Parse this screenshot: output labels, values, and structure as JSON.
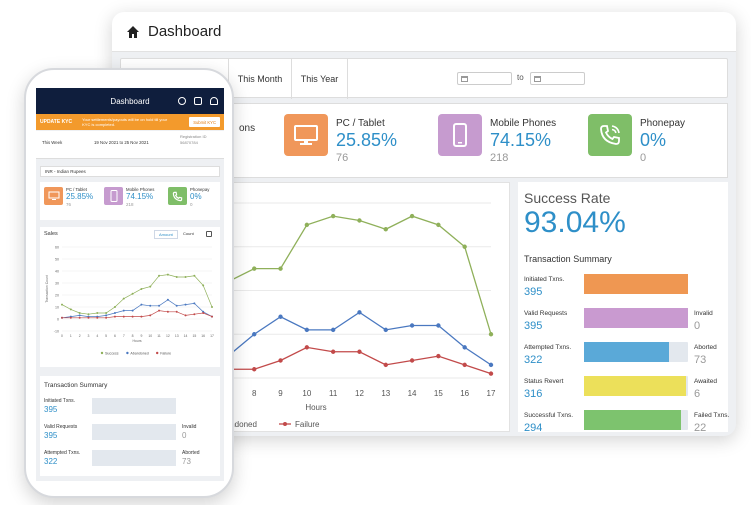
{
  "desktop": {
    "title": "Dashboard",
    "filter_tabs": [
      "This Month",
      "This Year"
    ],
    "date_to": "to",
    "partial_card_label": "ons",
    "cards": [
      {
        "label": "PC / Tablet",
        "pct": "25.85%",
        "sub": "76",
        "color": "#f0975a"
      },
      {
        "label": "Mobile Phones",
        "pct": "74.15%",
        "sub": "218",
        "color": "#c69bcf"
      },
      {
        "label": "Phonepay",
        "pct": "0%",
        "sub": "0",
        "color": "#7fbe68"
      }
    ],
    "success_rate_label": "Success Rate",
    "success_rate_value": "93.04%",
    "transaction_summary_title": "Transaction Summary",
    "summary_rows": [
      {
        "label": "Initiated Txns.",
        "value": "395",
        "color": "#ef9752",
        "fill": 1.0,
        "right_label": "",
        "right_value": ""
      },
      {
        "label": "Valid Requests",
        "value": "395",
        "color": "#c99ad0",
        "fill": 1.0,
        "right_label": "Invalid",
        "right_value": "0"
      },
      {
        "label": "Attempted Txns.",
        "value": "322",
        "color": "#5aa9d8",
        "fill": 0.815,
        "right_label": "Aborted",
        "right_value": "73"
      },
      {
        "label": "Status Revert",
        "value": "316",
        "color": "#ece05a",
        "fill": 0.98,
        "right_label": "Awaited",
        "right_value": "6"
      },
      {
        "label": "Successful Txns.",
        "value": "294",
        "color": "#7dc36e",
        "fill": 0.93,
        "right_label": "Failed Txns.",
        "right_value": "22"
      }
    ]
  },
  "phone": {
    "title": "Dashboard",
    "kyc_tag": "UPDATE KYC",
    "kyc_message": "Your settlements/payouts will be on hold till your KYC is completed.",
    "kyc_button": "Submit KYC",
    "period": "This Week",
    "date_range": "19 Nov 2021  to  25 Nov 2021",
    "registration_label": "Registration ID",
    "registration_value": "56870784",
    "currency": "INR  -  Indian Rupees",
    "cards": [
      {
        "label": "PC / Tablet",
        "pct": "25.85%",
        "sub": "76",
        "color": "#f0975a"
      },
      {
        "label": "Mobile Phones",
        "pct": "74.15%",
        "sub": "218",
        "color": "#c69bcf"
      },
      {
        "label": "Phonepay",
        "pct": "0%",
        "sub": "0",
        "color": "#7fbe68"
      }
    ],
    "sales_title": "Sales",
    "sales_tab_amount": "Amount",
    "sales_tab_count": "Count",
    "transaction_summary_title": "Transaction Summary",
    "summary_rows": [
      {
        "label": "Initiated Txns.",
        "value": "395",
        "color": "#ef9752",
        "fill": 1.0,
        "right_label": "",
        "right_value": ""
      },
      {
        "label": "Valid Requests",
        "value": "395",
        "color": "#c99ad0",
        "fill": 1.0,
        "right_label": "Invalid",
        "right_value": "0"
      },
      {
        "label": "Attempted Txns.",
        "value": "322",
        "color": "#5aa9d8",
        "fill": 0.815,
        "right_label": "Aborted",
        "right_value": "73"
      }
    ]
  },
  "chart_data": [
    {
      "type": "line",
      "x": [
        4,
        5,
        6,
        7,
        8,
        9,
        10,
        11,
        12,
        13,
        14,
        15,
        16,
        17
      ],
      "xlabel": "Hours",
      "ylabel": "",
      "series": [
        {
          "name": "Success",
          "color": "#8fb05a",
          "values": [
            10,
            12,
            15,
            22,
            25,
            25,
            35,
            37,
            36,
            34,
            37,
            35,
            30,
            10
          ]
        },
        {
          "name": "Abandoned",
          "color": "#4a78c0",
          "values": [
            2,
            3,
            3,
            5,
            10,
            14,
            11,
            11,
            15,
            11,
            12,
            12,
            7,
            3
          ]
        },
        {
          "name": "Failure",
          "color": "#c24a4a",
          "values": [
            2,
            2,
            2,
            2,
            2,
            4,
            7,
            6,
            6,
            3,
            4,
            5,
            3,
            1
          ]
        }
      ]
    },
    {
      "type": "line",
      "x": [
        0,
        1,
        2,
        3,
        4,
        5,
        6,
        7,
        8,
        9,
        10,
        11,
        12,
        13,
        14,
        15,
        16,
        17
      ],
      "xlabel": "Hours",
      "ylabel": "Transaction Count",
      "ylim": [
        -10,
        60
      ],
      "yticks": [
        -10,
        0,
        10,
        20,
        30,
        40,
        50,
        60
      ],
      "series": [
        {
          "name": "Success",
          "color": "#8fb05a",
          "values": [
            12,
            8,
            5,
            4,
            5,
            5,
            10,
            17,
            21,
            25,
            27,
            36,
            37,
            35,
            35,
            36,
            28,
            10
          ]
        },
        {
          "name": "Abandoned",
          "color": "#4a78c0",
          "values": [
            1,
            2,
            3,
            2,
            2,
            3,
            5,
            7,
            7,
            12,
            11,
            11,
            16,
            11,
            12,
            13,
            6,
            2
          ]
        },
        {
          "name": "Failure",
          "color": "#c24a4a",
          "values": [
            1,
            1,
            1,
            1,
            1,
            1,
            2,
            2,
            2,
            2,
            3,
            7,
            6,
            6,
            3,
            4,
            5,
            2
          ]
        }
      ]
    }
  ]
}
